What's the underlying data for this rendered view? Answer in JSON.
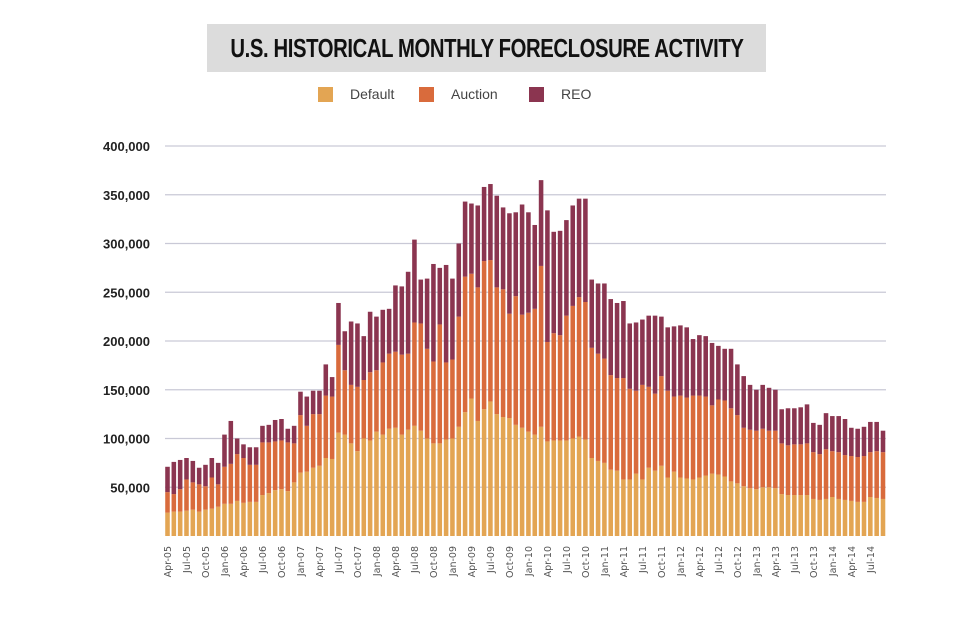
{
  "chart_data": {
    "type": "bar",
    "stacked": true,
    "title": "U.S. HISTORICAL MONTHLY FORECLOSURE ACTIVITY",
    "xlabel": "",
    "ylabel": "",
    "ylim": [
      0,
      400000
    ],
    "yticks": [
      50000,
      100000,
      150000,
      200000,
      250000,
      300000,
      350000,
      400000
    ],
    "ytick_labels": [
      "50,000",
      "100,000",
      "150,000",
      "200,000",
      "250,000",
      "300,000",
      "350,000",
      "400,000"
    ],
    "grid": true,
    "legend_position": "top-center",
    "xtick_labels": [
      "Apr-05",
      "Jul-05",
      "Oct-05",
      "Jan-06",
      "Apr-06",
      "Jul-06",
      "Oct-06",
      "Jan-07",
      "Apr-07",
      "Jul-07",
      "Oct-07",
      "Jan-08",
      "Apr-08",
      "Jul-08",
      "Oct-08",
      "Jan-09",
      "Apr-09",
      "Jul-09",
      "Oct-09",
      "Jan-10",
      "Apr-10",
      "Jul-10",
      "Oct-10",
      "Jan-11",
      "Apr-11",
      "Jul-11",
      "Oct-11",
      "Jan-12",
      "Apr-12",
      "Jul-12",
      "Oct-12",
      "Jan-13",
      "Apr-13",
      "Jul-13",
      "Oct-13",
      "Jan-14",
      "Apr-14",
      "Jul-14"
    ],
    "categories": [
      "Apr-05",
      "May-05",
      "Jun-05",
      "Jul-05",
      "Aug-05",
      "Sep-05",
      "Oct-05",
      "Nov-05",
      "Dec-05",
      "Jan-06",
      "Feb-06",
      "Mar-06",
      "Apr-06",
      "May-06",
      "Jun-06",
      "Jul-06",
      "Aug-06",
      "Sep-06",
      "Oct-06",
      "Nov-06",
      "Dec-06",
      "Jan-07",
      "Feb-07",
      "Mar-07",
      "Apr-07",
      "May-07",
      "Jun-07",
      "Jul-07",
      "Aug-07",
      "Sep-07",
      "Oct-07",
      "Nov-07",
      "Dec-07",
      "Jan-08",
      "Feb-08",
      "Mar-08",
      "Apr-08",
      "May-08",
      "Jun-08",
      "Jul-08",
      "Aug-08",
      "Sep-08",
      "Oct-08",
      "Nov-08",
      "Dec-08",
      "Jan-09",
      "Feb-09",
      "Mar-09",
      "Apr-09",
      "May-09",
      "Jun-09",
      "Jul-09",
      "Aug-09",
      "Sep-09",
      "Oct-09",
      "Nov-09",
      "Dec-09",
      "Jan-10",
      "Feb-10",
      "Mar-10",
      "Apr-10",
      "May-10",
      "Jun-10",
      "Jul-10",
      "Aug-10",
      "Sep-10",
      "Oct-10",
      "Nov-10",
      "Dec-10",
      "Jan-11",
      "Feb-11",
      "Mar-11",
      "Apr-11",
      "May-11",
      "Jun-11",
      "Jul-11",
      "Aug-11",
      "Sep-11",
      "Oct-11",
      "Nov-11",
      "Dec-11",
      "Jan-12",
      "Feb-12",
      "Mar-12",
      "Apr-12",
      "May-12",
      "Jun-12",
      "Jul-12",
      "Aug-12",
      "Sep-12",
      "Oct-12",
      "Nov-12",
      "Dec-12",
      "Jan-13",
      "Feb-13",
      "Mar-13",
      "Apr-13",
      "May-13",
      "Jun-13",
      "Jul-13",
      "Aug-13",
      "Sep-13",
      "Oct-13",
      "Nov-13",
      "Dec-13",
      "Jan-14",
      "Feb-14",
      "Mar-14",
      "Apr-14",
      "May-14",
      "Jun-14",
      "Jul-14",
      "Aug-14",
      "Sep-14"
    ],
    "series": [
      {
        "name": "Default",
        "color": "#E3A553",
        "values": [
          24000,
          25000,
          25000,
          26000,
          27000,
          25000,
          27000,
          28000,
          30000,
          33000,
          33000,
          36000,
          34000,
          35000,
          35000,
          42000,
          44000,
          47000,
          48000,
          46000,
          55000,
          65000,
          66000,
          70000,
          72000,
          80000,
          79000,
          106000,
          104000,
          95000,
          87000,
          100000,
          98000,
          107000,
          104000,
          110000,
          111000,
          104000,
          109000,
          113000,
          108000,
          100000,
          95000,
          95000,
          99000,
          100000,
          112000,
          127000,
          141000,
          118000,
          130000,
          138000,
          125000,
          122000,
          121000,
          114000,
          111000,
          107000,
          104000,
          112000,
          97000,
          98000,
          98000,
          98000,
          100000,
          102000,
          99000,
          80000,
          77000,
          75000,
          68000,
          67000,
          58000,
          58000,
          64000,
          58000,
          70000,
          67000,
          72000,
          60000,
          66000,
          60000,
          59000,
          58000,
          60000,
          62000,
          64000,
          63000,
          61000,
          56000,
          54000,
          51000,
          49000,
          48000,
          50000,
          50000,
          49000,
          43000,
          42000,
          42000,
          42000,
          42000,
          38000,
          37000,
          38000,
          40000,
          38000,
          37000,
          36000,
          35000,
          35000,
          40000,
          39000,
          38000
        ]
      },
      {
        "name": "Auction",
        "color": "#D96B3C",
        "values": [
          21000,
          18000,
          23000,
          32000,
          28000,
          28000,
          24000,
          32000,
          23000,
          38000,
          41000,
          48000,
          46000,
          38000,
          38000,
          54000,
          52000,
          50000,
          50000,
          50000,
          40000,
          59000,
          47000,
          55000,
          53000,
          64000,
          64000,
          90000,
          66000,
          60000,
          66000,
          60000,
          70000,
          63000,
          74000,
          77000,
          78000,
          82000,
          78000,
          106000,
          110000,
          92000,
          84000,
          122000,
          79000,
          81000,
          113000,
          139000,
          128000,
          137000,
          152000,
          145000,
          130000,
          131000,
          107000,
          132000,
          116000,
          122000,
          129000,
          165000,
          102000,
          110000,
          108000,
          128000,
          136000,
          143000,
          141000,
          113000,
          110000,
          107000,
          97000,
          95000,
          104000,
          93000,
          85000,
          97000,
          83000,
          79000,
          92000,
          89000,
          77000,
          84000,
          83000,
          86000,
          84000,
          81000,
          70000,
          77000,
          78000,
          75000,
          70000,
          60000,
          60000,
          60000,
          60000,
          58000,
          59000,
          52000,
          51000,
          52000,
          52000,
          53000,
          48000,
          47000,
          51000,
          47000,
          48000,
          46000,
          46000,
          46000,
          47000,
          46000,
          48000,
          48000
        ]
      },
      {
        "name": "REO",
        "color": "#8B3550",
        "values": [
          26000,
          33000,
          30000,
          22000,
          22000,
          17000,
          22000,
          20000,
          22000,
          33000,
          44000,
          16000,
          14000,
          18000,
          18000,
          17000,
          18000,
          22000,
          22000,
          14000,
          18000,
          24000,
          30000,
          24000,
          24000,
          32000,
          20000,
          43000,
          40000,
          65000,
          65000,
          45000,
          62000,
          55000,
          54000,
          46000,
          68000,
          70000,
          84000,
          85000,
          45000,
          72000,
          100000,
          58000,
          100000,
          83000,
          75000,
          77000,
          72000,
          84000,
          76000,
          78000,
          94000,
          84000,
          103000,
          86000,
          113000,
          103000,
          86000,
          88000,
          135000,
          104000,
          107000,
          98000,
          103000,
          101000,
          106000,
          70000,
          72000,
          77000,
          78000,
          77000,
          79000,
          67000,
          70000,
          67000,
          73000,
          80000,
          61000,
          65000,
          72000,
          72000,
          72000,
          58000,
          62000,
          62000,
          64000,
          55000,
          53000,
          61000,
          52000,
          53000,
          46000,
          42000,
          45000,
          44000,
          42000,
          35000,
          38000,
          37000,
          38000,
          40000,
          30000,
          30000,
          37000,
          36000,
          37000,
          37000,
          29000,
          29000,
          30000,
          31000,
          30000,
          22000
        ]
      }
    ]
  }
}
